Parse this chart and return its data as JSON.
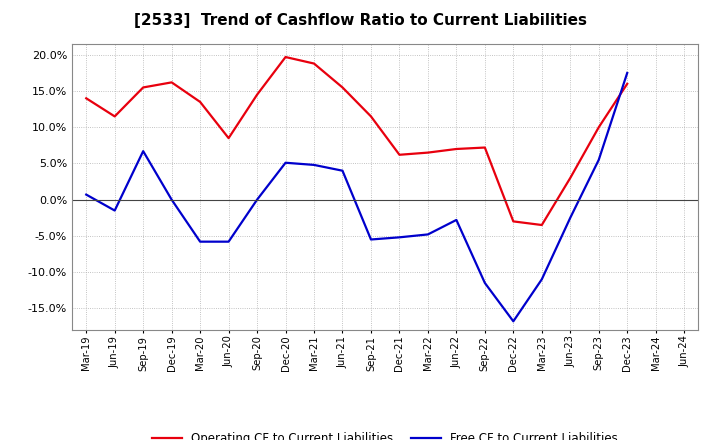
{
  "title": "[2533]  Trend of Cashflow Ratio to Current Liabilities",
  "x_labels": [
    "Mar-19",
    "Jun-19",
    "Sep-19",
    "Dec-19",
    "Mar-20",
    "Jun-20",
    "Sep-20",
    "Dec-20",
    "Mar-21",
    "Jun-21",
    "Sep-21",
    "Dec-21",
    "Mar-22",
    "Jun-22",
    "Sep-22",
    "Dec-22",
    "Mar-23",
    "Jun-23",
    "Sep-23",
    "Dec-23",
    "Mar-24",
    "Jun-24"
  ],
  "operating_cf": [
    0.14,
    0.115,
    0.155,
    0.162,
    0.135,
    0.085,
    0.145,
    0.197,
    0.188,
    0.155,
    0.115,
    0.062,
    0.065,
    0.07,
    0.072,
    -0.03,
    -0.035,
    0.03,
    0.1,
    0.16,
    null,
    null
  ],
  "free_cf": [
    0.007,
    -0.015,
    0.067,
    0.0,
    -0.058,
    -0.058,
    0.0,
    0.051,
    0.048,
    0.04,
    -0.055,
    -0.052,
    -0.048,
    -0.028,
    -0.115,
    -0.168,
    -0.11,
    -0.025,
    0.055,
    0.175,
    null,
    null
  ],
  "operating_color": "#e8000e",
  "free_color": "#0000cc",
  "background_color": "#ffffff",
  "plot_bg_color": "#ffffff",
  "grid_color": "#b0b0b0",
  "ylim": [
    -0.18,
    0.215
  ],
  "yticks": [
    -0.15,
    -0.1,
    -0.05,
    0.0,
    0.05,
    0.1,
    0.15,
    0.2
  ],
  "legend_labels": [
    "Operating CF to Current Liabilities",
    "Free CF to Current Liabilities"
  ]
}
